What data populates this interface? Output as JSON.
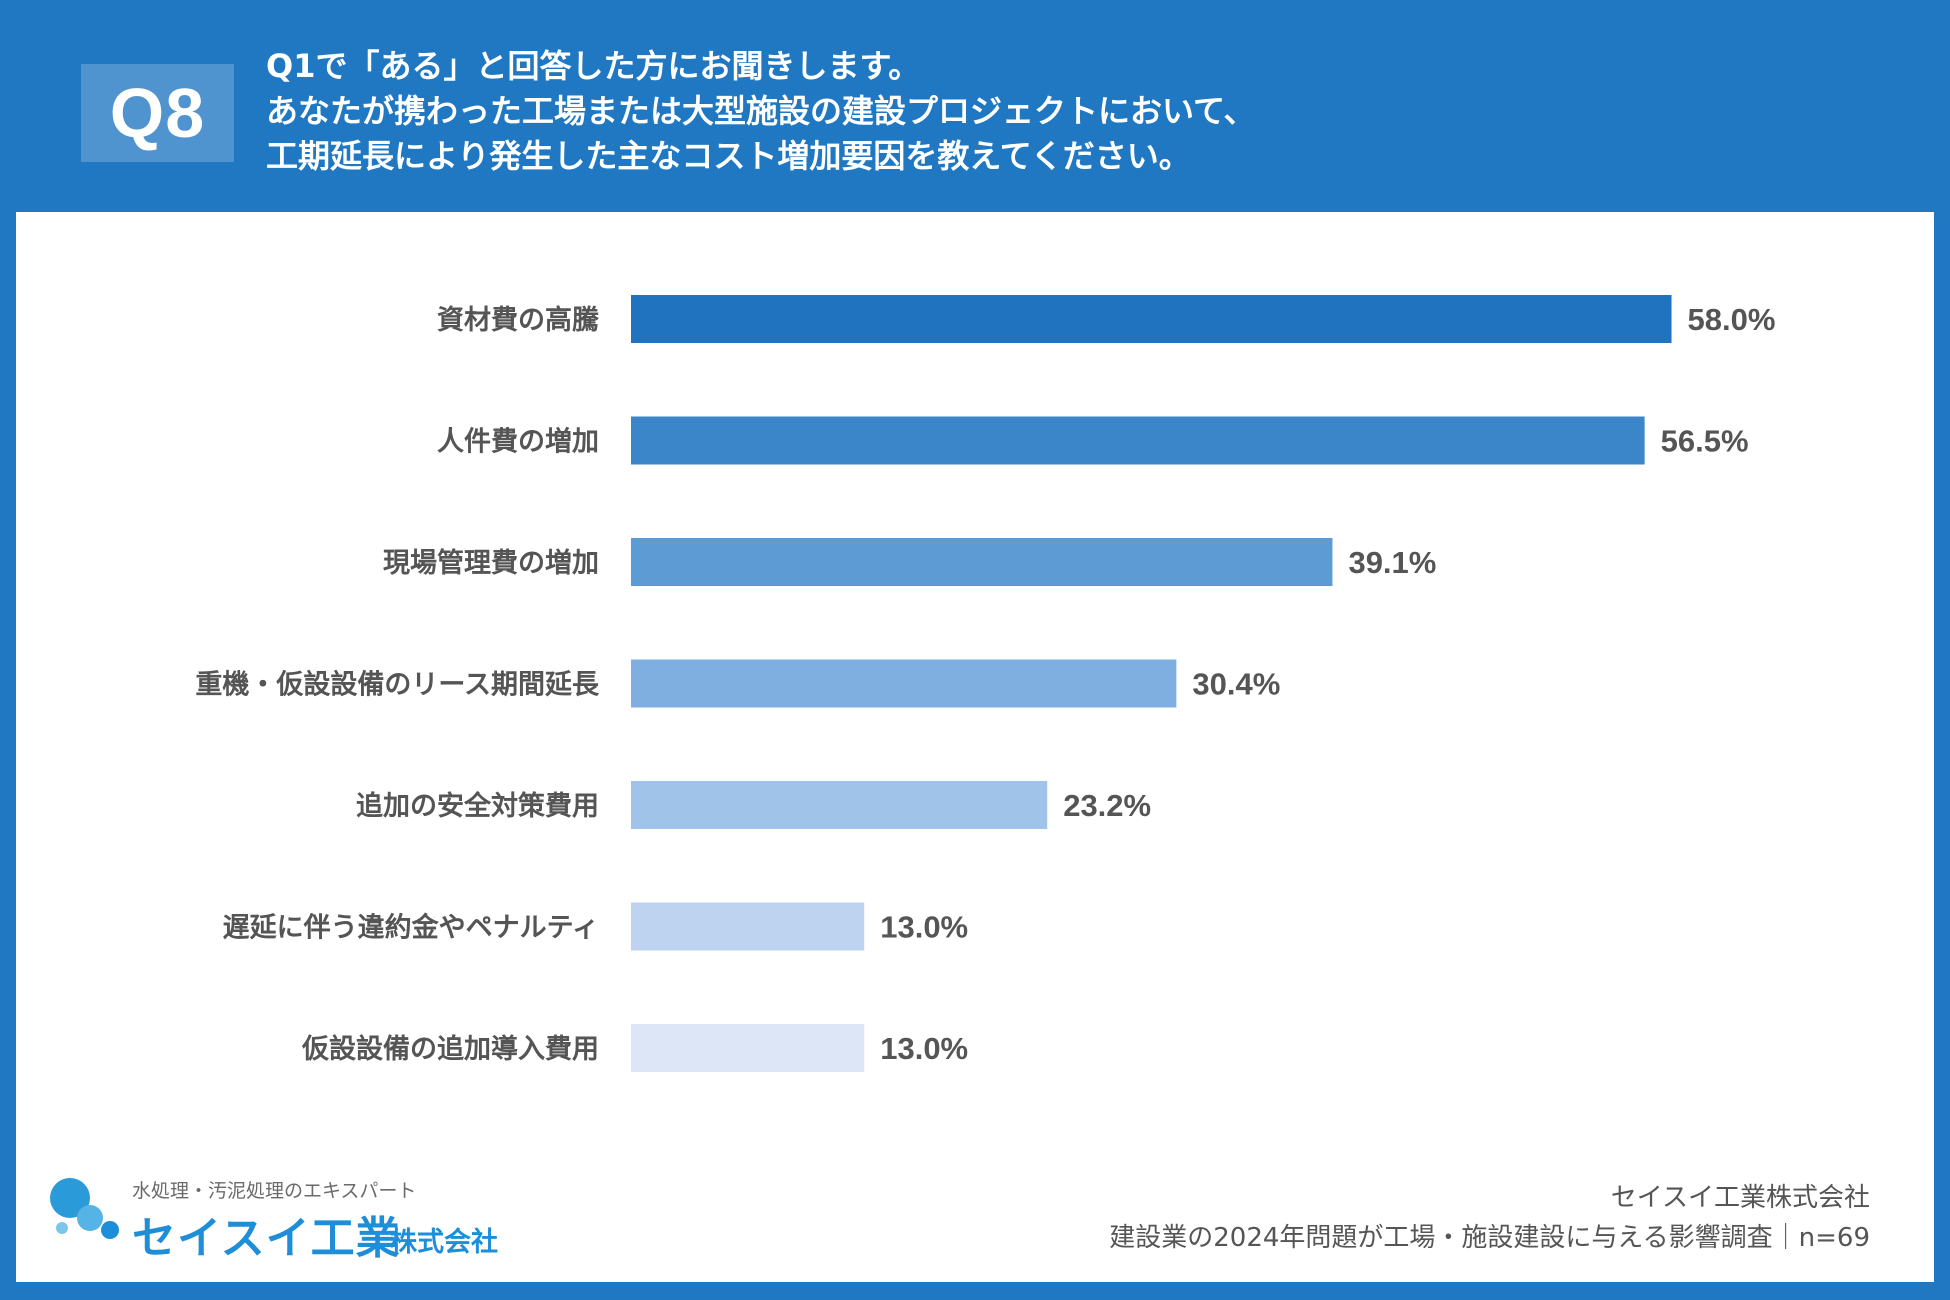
{
  "header": {
    "badge": "Q8",
    "question_lines": [
      "Q1で「ある」と回答した方にお聞きします。",
      "あなたが携わった工場または大型施設の建設プロジェクトにおいて、",
      "工期延長により発生した主なコスト増加要因を教えてください。"
    ]
  },
  "chart_data": {
    "type": "bar",
    "orientation": "horizontal",
    "categories": [
      "資材費の高騰",
      "人件費の増加",
      "現場管理費の増加",
      "重機・仮設設備のリース期間延長",
      "追加の安全対策費用",
      "遅延に伴う違約金やペナルティ",
      "仮設設備の追加導入費用"
    ],
    "values": [
      58.0,
      56.5,
      39.1,
      30.4,
      23.2,
      13.0,
      13.0
    ],
    "value_labels": [
      "58.0%",
      "56.5%",
      "39.1%",
      "30.4%",
      "23.2%",
      "13.0%",
      "13.0%"
    ],
    "bar_colors": [
      "#1f73bf",
      "#3a86c8",
      "#5d9bd5",
      "#7eafe0",
      "#9fc3e9",
      "#bed3f0",
      "#dce6f7"
    ],
    "xlim": [
      0,
      100
    ],
    "grid": false,
    "legend": "none"
  },
  "footer": {
    "tagline": "水処理・汚泥処理のエキスパート",
    "logo_name": "セイスイ工業",
    "logo_suffix": "株式会社",
    "company": "セイスイ工業株式会社",
    "survey": "建設業の2024年問題が工場・施設建設に与える影響調査｜n=69"
  },
  "colors": {
    "frame": "#1f78c1",
    "badge": "#4f93cf",
    "label_text": "#555555",
    "logo": "#1f8ed8"
  }
}
